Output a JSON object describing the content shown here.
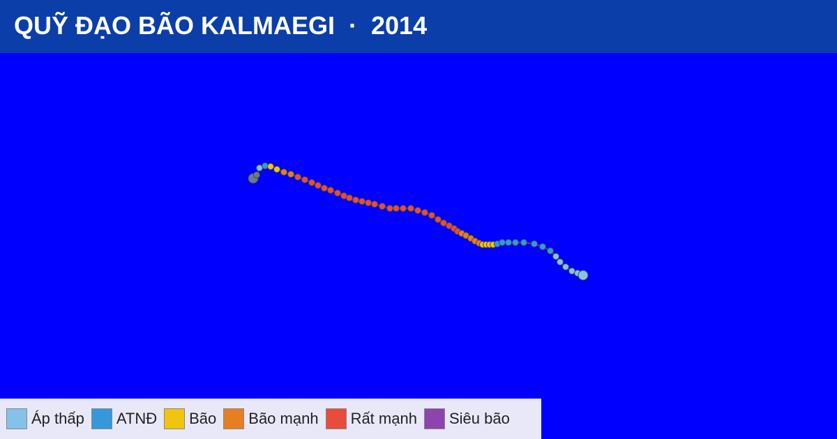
{
  "header": {
    "title": "QUỸ ĐẠO BÃO KALMAEGI  ·  2014"
  },
  "legend": {
    "items": [
      {
        "label": "Áp thấp",
        "color": "#85c1e9"
      },
      {
        "label": "ATNĐ",
        "color": "#3498db"
      },
      {
        "label": "Bão",
        "color": "#f1c40f"
      },
      {
        "label": "Bão mạnh",
        "color": "#e67e22"
      },
      {
        "label": "Rất mạnh",
        "color": "#e74c3c"
      },
      {
        "label": "Siêu bão",
        "color": "#8e44ad"
      }
    ]
  }
}
